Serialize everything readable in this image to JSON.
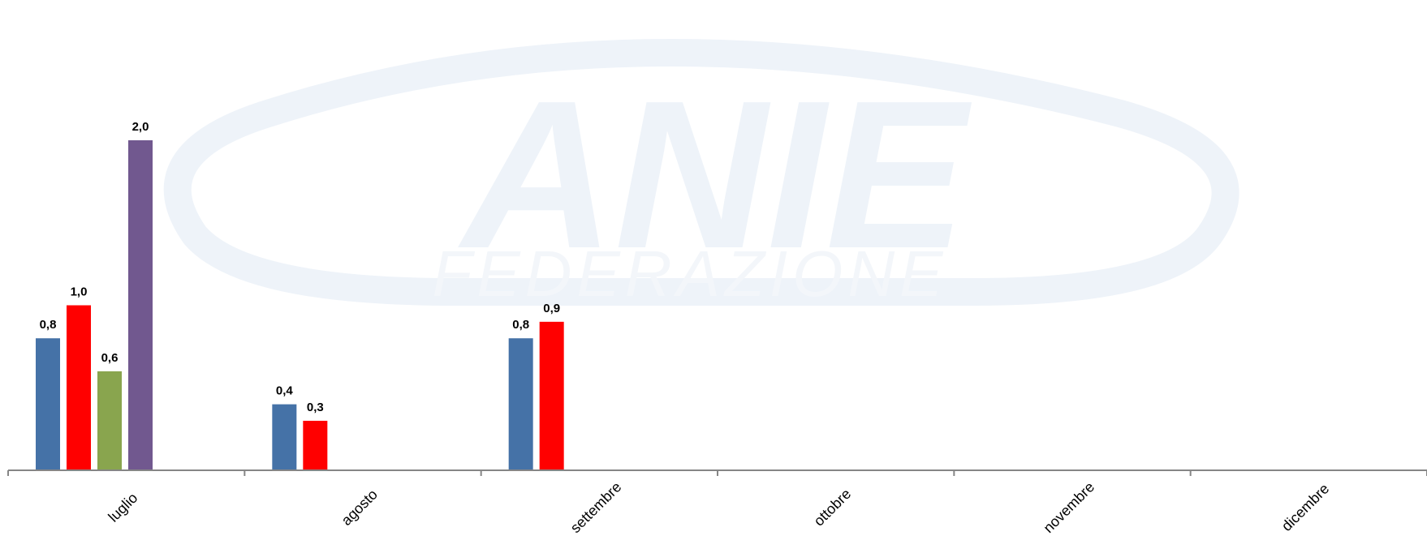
{
  "chart_data": {
    "type": "bar",
    "categories": [
      "luglio",
      "agosto",
      "settembre",
      "ottobre",
      "novembre",
      "dicembre"
    ],
    "series": [
      {
        "color": "#4572A7",
        "values": [
          0.8,
          0.4,
          0.8,
          null,
          null,
          null
        ],
        "labels": [
          "0,8",
          "0,4",
          "0,8",
          "",
          "",
          ""
        ]
      },
      {
        "color": "#FF0000",
        "values": [
          1.0,
          0.3,
          0.9,
          null,
          null,
          null
        ],
        "labels": [
          "1,0",
          "0,3",
          "0,9",
          "",
          "",
          ""
        ]
      },
      {
        "color": "#89A54E",
        "values": [
          0.6,
          null,
          null,
          null,
          null,
          null
        ],
        "labels": [
          "0,6",
          "",
          "",
          "",
          "",
          ""
        ]
      },
      {
        "color": "#71588F",
        "values": [
          2.0,
          null,
          null,
          null,
          null,
          null
        ],
        "labels": [
          "2,0",
          "",
          "",
          "",
          "",
          ""
        ]
      }
    ],
    "ylim": [
      0,
      2.0
    ],
    "grid": false,
    "legend": "none",
    "axis_color": "#868686"
  },
  "watermark": {
    "text": "ANIE",
    "subtext": "FEDERAZIONE",
    "color": "#EEF3F9"
  }
}
